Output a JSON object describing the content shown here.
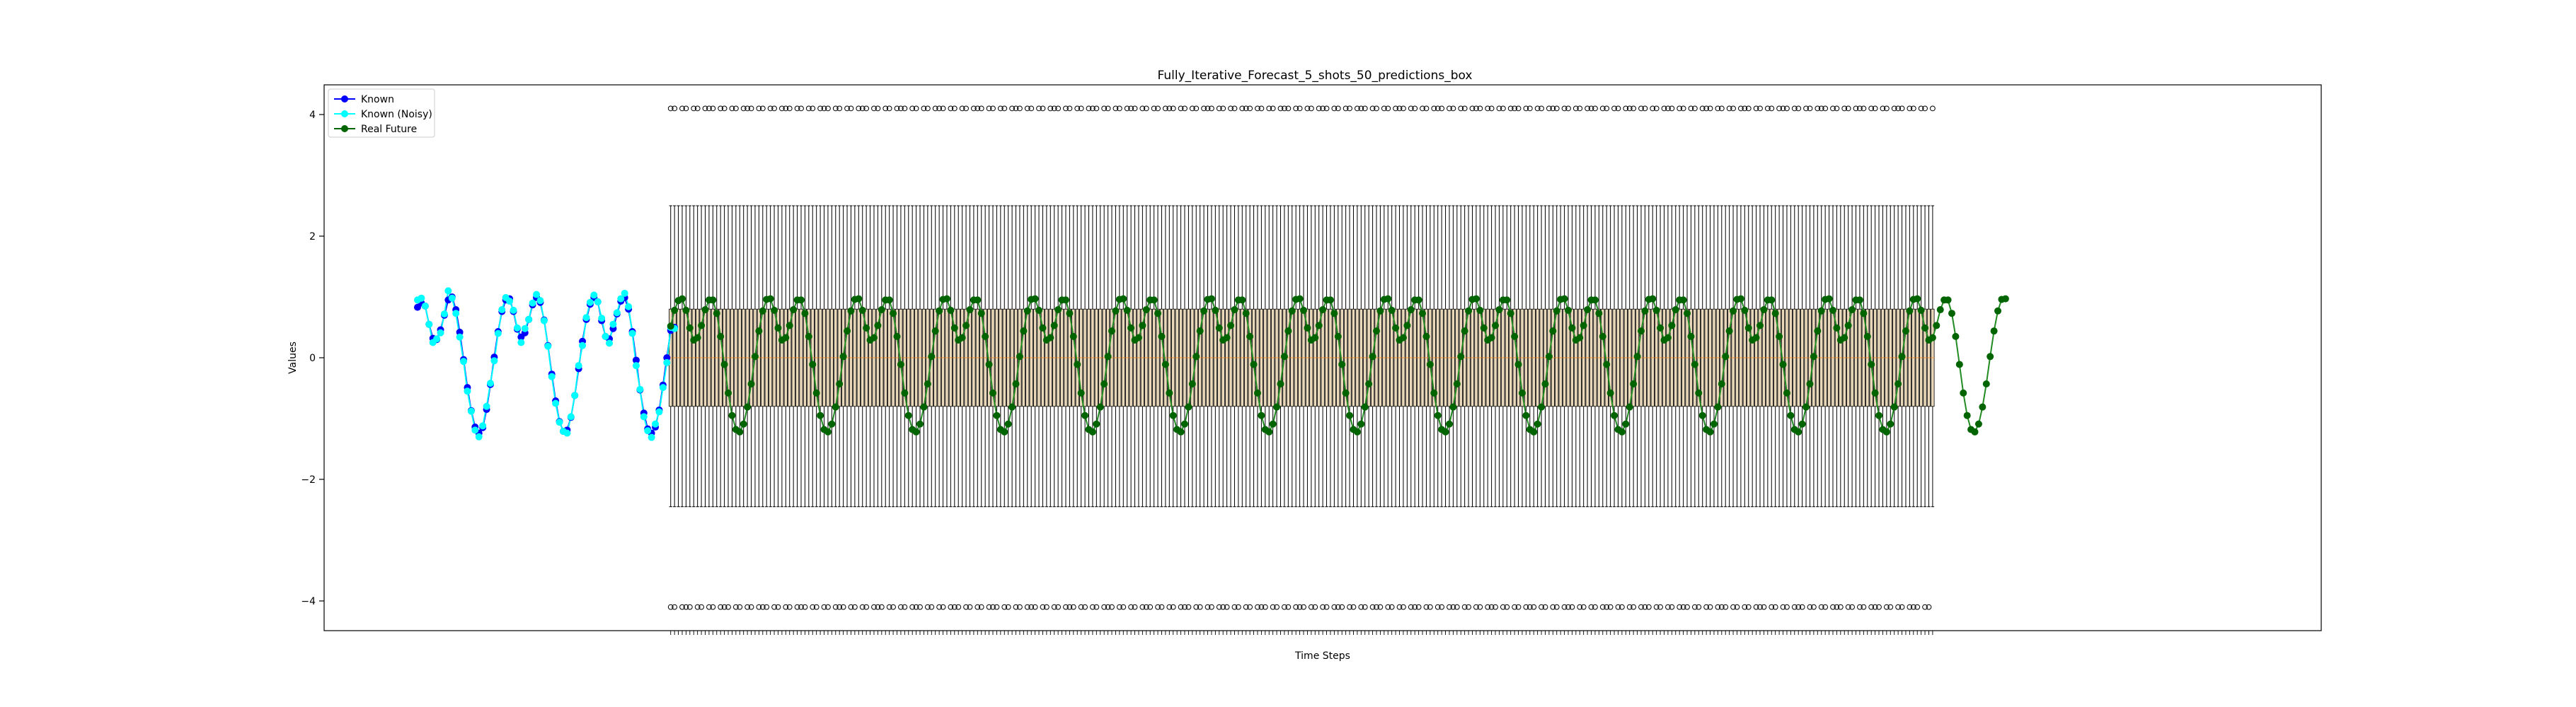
{
  "chart_data": {
    "type": "line",
    "title": "Fully_Iterative_Forecast_5_shots_50_predictions_box",
    "xlabel": "Time Steps",
    "ylabel": "Values",
    "ylim": [
      -4.5,
      4.5
    ],
    "yticks": [
      -4,
      -2,
      0,
      2,
      4
    ],
    "ytick_labels": [
      "−4",
      "−2",
      "0",
      "2",
      "4"
    ],
    "grid": false,
    "legend_position": "top-left",
    "legend": [
      {
        "label": "Known",
        "color": "#0000ff"
      },
      {
        "label": "Known (Noisy)",
        "color": "#00ffff"
      },
      {
        "label": "Real Future",
        "color": "#006400"
      }
    ],
    "known": {
      "x_start": 0,
      "step": 1,
      "values": [
        0.83,
        0.9,
        0.85,
        0.55,
        0.32,
        0.3,
        0.46,
        0.7,
        0.95,
        1.0,
        0.79,
        0.42,
        -0.03,
        -0.49,
        -0.87,
        -1.14,
        -1.24,
        -1.15,
        -0.85,
        -0.44,
        0.01,
        0.43,
        0.76,
        0.95,
        0.97,
        0.76,
        0.47,
        0.34,
        0.41,
        0.63,
        0.87,
        0.99,
        0.91,
        0.62,
        0.2,
        -0.27,
        -0.71,
        -1.05,
        -1.21,
        -1.19,
        -0.98,
        -0.62,
        -0.18,
        0.27,
        0.63,
        0.88,
        0.99,
        0.92,
        0.61,
        0.35,
        0.31,
        0.48,
        0.72,
        0.93,
        0.99,
        0.8,
        0.43,
        -0.04,
        -0.53,
        -0.91,
        -1.17,
        -1.24,
        -1.14,
        -0.86,
        -0.45,
        0.0,
        0.45,
        0.5
      ]
    },
    "known_noisy": {
      "x_start": 0,
      "step": 1,
      "values": [
        0.95,
        0.98,
        0.85,
        0.55,
        0.25,
        0.31,
        0.41,
        0.72,
        1.1,
        0.98,
        0.73,
        0.34,
        -0.06,
        -0.55,
        -0.88,
        -1.19,
        -1.3,
        -1.12,
        -0.8,
        -0.42,
        -0.05,
        0.4,
        0.79,
        0.99,
        0.93,
        0.78,
        0.49,
        0.25,
        0.48,
        0.63,
        0.9,
        1.04,
        0.94,
        0.61,
        0.19,
        -0.31,
        -0.75,
        -1.06,
        -1.21,
        -1.24,
        -0.97,
        -0.62,
        -0.13,
        0.2,
        0.66,
        0.91,
        1.03,
        0.92,
        0.65,
        0.35,
        0.24,
        0.55,
        0.74,
        0.97,
        1.06,
        0.84,
        0.4,
        -0.13,
        -0.52,
        -0.97,
        -1.2,
        -1.31,
        -1.09,
        -0.89,
        -0.49,
        -0.08,
        0.5,
        0.48
      ]
    },
    "real_future": {
      "x_start": 66,
      "step": 1,
      "values": [
        0.52,
        0.78,
        0.94,
        0.97,
        0.78,
        0.49,
        0.29,
        0.33,
        0.53,
        0.79,
        0.95,
        0.95,
        0.73,
        0.35,
        -0.11,
        -0.58,
        -0.95,
        -1.18,
        -1.22,
        -1.09,
        -0.81,
        -0.43,
        0.02,
        0.44,
        0.77,
        0.96,
        0.97,
        0.78,
        0.49,
        0.29,
        0.33,
        0.53,
        0.79,
        0.95,
        0.95,
        0.73,
        0.35,
        -0.11,
        -0.58,
        -0.95,
        -1.18,
        -1.22,
        -1.09,
        -0.81,
        -0.43,
        0.02,
        0.44,
        0.77,
        0.96,
        0.97,
        0.78,
        0.49,
        0.29,
        0.33,
        0.53,
        0.79,
        0.95,
        0.95,
        0.73,
        0.35,
        -0.11,
        -0.58,
        -0.95,
        -1.18,
        -1.22,
        -1.09,
        -0.81,
        -0.43,
        0.02,
        0.44,
        0.77,
        0.96,
        0.97,
        0.78,
        0.49,
        0.29,
        0.33,
        0.53,
        0.79,
        0.95,
        0.95,
        0.73,
        0.35,
        -0.11,
        -0.58,
        -0.95,
        -1.18,
        -1.22,
        -1.09,
        -0.81,
        -0.43,
        0.02,
        0.44,
        0.77,
        0.96,
        0.97,
        0.78,
        0.49,
        0.29,
        0.33,
        0.53,
        0.79,
        0.95,
        0.95,
        0.73,
        0.35,
        -0.11,
        -0.58,
        -0.95,
        -1.18,
        -1.22,
        -1.09,
        -0.81,
        -0.43,
        0.02,
        0.44,
        0.77,
        0.96,
        0.97,
        0.78,
        0.49,
        0.29,
        0.33,
        0.53,
        0.79,
        0.95,
        0.95,
        0.73,
        0.35,
        -0.11,
        -0.58,
        -0.95,
        -1.18,
        -1.22,
        -1.09,
        -0.81,
        -0.43,
        0.02,
        0.44,
        0.77,
        0.96,
        0.97,
        0.78,
        0.49,
        0.29,
        0.33,
        0.53,
        0.79,
        0.95,
        0.95,
        0.73,
        0.35,
        -0.11,
        -0.58,
        -0.95,
        -1.18,
        -1.22,
        -1.09,
        -0.81,
        -0.43,
        0.02,
        0.44,
        0.77,
        0.96,
        0.97,
        0.78,
        0.49,
        0.29,
        0.33,
        0.53,
        0.79,
        0.95,
        0.95,
        0.73,
        0.35,
        -0.11,
        -0.58,
        -0.95,
        -1.18,
        -1.22,
        -1.09,
        -0.81,
        -0.43,
        0.02,
        0.44,
        0.77,
        0.96,
        0.97,
        0.78,
        0.49,
        0.29,
        0.33,
        0.53,
        0.79,
        0.95,
        0.95,
        0.73,
        0.35,
        -0.11,
        -0.58,
        -0.95,
        -1.18,
        -1.22,
        -1.09,
        -0.81,
        -0.43,
        0.02,
        0.44,
        0.77,
        0.96,
        0.97,
        0.78,
        0.49,
        0.29,
        0.33,
        0.53,
        0.79,
        0.95,
        0.95,
        0.73,
        0.35,
        -0.11,
        -0.58,
        -0.95,
        -1.18,
        -1.22,
        -1.09,
        -0.81,
        -0.43,
        0.02,
        0.44,
        0.77,
        0.96,
        0.97,
        0.78,
        0.49,
        0.29,
        0.33,
        0.53,
        0.79,
        0.95,
        0.95,
        0.73,
        0.35,
        -0.11,
        -0.58,
        -0.95,
        -1.18,
        -1.22,
        -1.09,
        -0.81,
        -0.43,
        0.02,
        0.44,
        0.77,
        0.96,
        0.97,
        0.78,
        0.49,
        0.29,
        0.33,
        0.53,
        0.79,
        0.95,
        0.95,
        0.73,
        0.35,
        -0.11,
        -0.58,
        -0.95,
        -1.18,
        -1.22,
        -1.09,
        -0.81,
        -0.43,
        0.02,
        0.44,
        0.77,
        0.96,
        0.97,
        0.78,
        0.49,
        0.29,
        0.33,
        0.53,
        0.79,
        0.95,
        0.95,
        0.73,
        0.35,
        -0.11,
        -0.58,
        -0.95,
        -1.18,
        -1.22,
        -1.09,
        -0.81,
        -0.43,
        0.02,
        0.44,
        0.77,
        0.96,
        0.97,
        0.78,
        0.49,
        0.29,
        0.33,
        0.53,
        0.79,
        0.95,
        0.95,
        0.73,
        0.35,
        -0.11,
        -0.58,
        -0.95,
        -1.18,
        -1.22,
        -1.09,
        -0.81,
        -0.43,
        0.02,
        0.44,
        0.77,
        0.96,
        0.97,
        0.78,
        0.49,
        0.29,
        0.33,
        0.53,
        0.79,
        0.95,
        0.95,
        0.73,
        0.35,
        -0.11,
        -0.58,
        -0.95,
        -1.18,
        -1.22,
        -1.09,
        -0.81,
        -0.43,
        0.02,
        0.44,
        0.77,
        0.96,
        0.97
      ]
    },
    "predictions_box": {
      "x_start": 66,
      "count": 330,
      "whisker_low": -2.45,
      "q1": -0.8,
      "median": 0.0,
      "q3": 0.8,
      "whisker_high": 2.5,
      "outlier_low": -4.1,
      "outlier_high": 4.1,
      "box_color": "#e8d7b9",
      "median_color": "#ff9933"
    },
    "x_tick_labels_note": "",
    "colors": {
      "known": "#0000ff",
      "known_noisy": "#00ffff",
      "real_future": "#006400",
      "real_future_line": "#228b22"
    }
  }
}
